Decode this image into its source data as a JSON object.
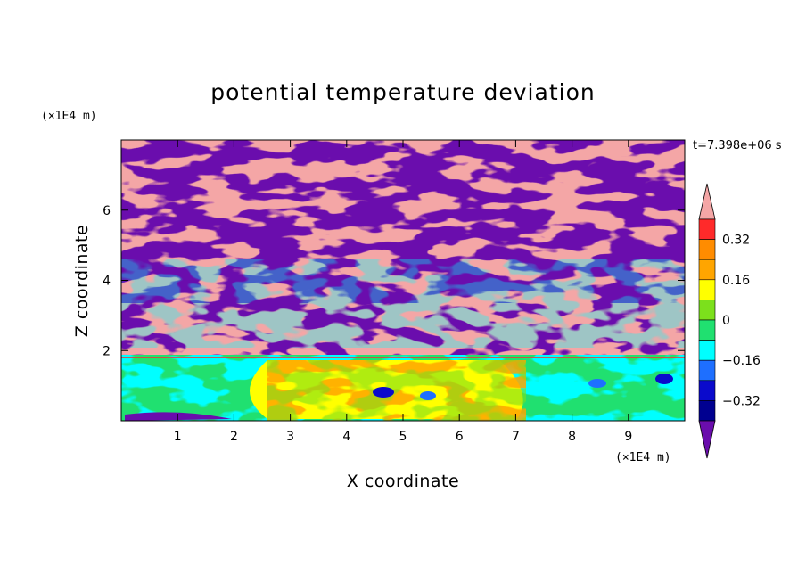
{
  "chart_data": {
    "type": "heatmap",
    "title": "potential temperature deviation",
    "xlabel": "X coordinate",
    "ylabel": "Z coordinate",
    "x_unit": "(×1E4 m)",
    "y_unit": "(×1E4 m)",
    "time_label": "t=7.398e+06 s",
    "xlim": [
      0,
      10
    ],
    "ylim": [
      0,
      8
    ],
    "x_ticks": [
      "1",
      "2",
      "3",
      "4",
      "5",
      "6",
      "7",
      "8",
      "9"
    ],
    "y_ticks": [
      "2",
      "4",
      "6"
    ],
    "colorbar": {
      "levels": [
        {
          "color": "#F4A6A6"
        },
        {
          "color": "#FF2A2A"
        },
        {
          "color": "#FF8C00"
        },
        {
          "color": "#FFA500"
        },
        {
          "color": "#FFFF00"
        },
        {
          "color": "#7CE01C"
        },
        {
          "color": "#20E070"
        },
        {
          "color": "#00FFFF"
        },
        {
          "color": "#1E6FFF"
        },
        {
          "color": "#0A0ACC"
        },
        {
          "color": "#000090"
        },
        {
          "color": "#6A0DAD"
        }
      ],
      "labels": [
        "0.32",
        "0.16",
        "0",
        "−0.16",
        "−0.32"
      ]
    },
    "regions": [
      {
        "band": "upper",
        "z_range": [
          2,
          8
        ],
        "description_values": "alternating pink (positive > 0.4) and purple (negative < -0.4) streaks"
      },
      {
        "band": "lower",
        "z_range": [
          0,
          2
        ],
        "description_values": "yellow/orange/green/cyan mixed layer values between -0.32 and 0.32"
      }
    ]
  }
}
